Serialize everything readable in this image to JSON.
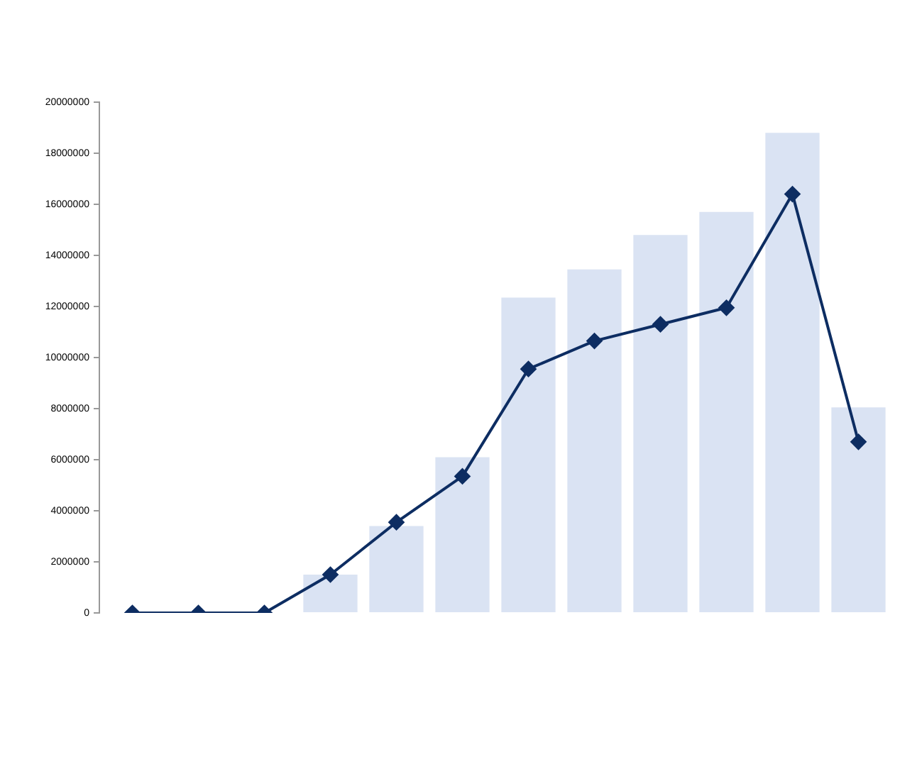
{
  "chart_data": {
    "type": "bar",
    "categories": [
      null,
      null,
      null,
      null,
      null,
      null,
      null,
      null,
      null,
      null,
      null,
      null
    ],
    "ylim": [
      0,
      20000000
    ],
    "yticks": [
      0,
      2000000,
      4000000,
      6000000,
      8000000,
      10000000,
      12000000,
      14000000,
      16000000,
      18000000,
      20000000
    ],
    "grid": false,
    "legend": false,
    "tick_labels": "y",
    "marker": "diamond",
    "line_style": "solid",
    "series": [
      {
        "color": "#dae3f3",
        "values": [
          0,
          0,
          0,
          1500000,
          3400000,
          6100000,
          12350000,
          13450000,
          14800000,
          15700000,
          18800000,
          8050000
        ]
      },
      {
        "type": "line",
        "color": "#0d2d62",
        "values": [
          0,
          0,
          0,
          1500000,
          3550000,
          5350000,
          9550000,
          10650000,
          11300000,
          11950000,
          16400000,
          6700000
        ]
      }
    ]
  }
}
